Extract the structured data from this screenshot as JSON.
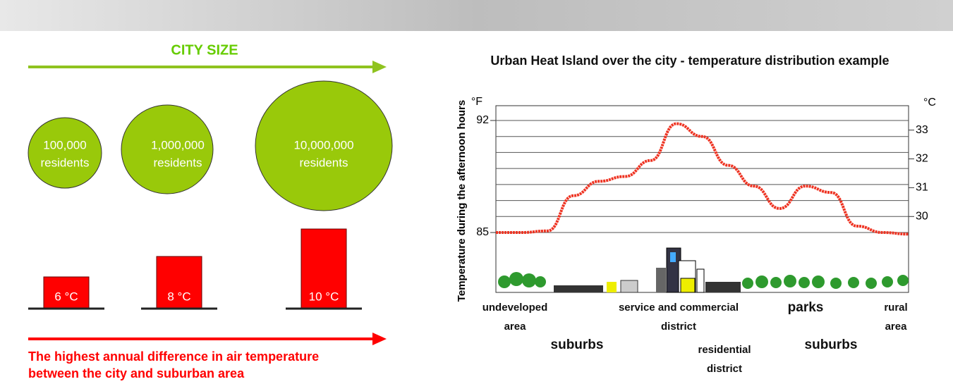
{
  "left": {
    "title": "CITY SIZE",
    "cities": [
      {
        "population": "100,000",
        "unit": "residents",
        "difference": "6 °C"
      },
      {
        "population": "1,000,000",
        "unit": "residents",
        "difference": "8 °C"
      },
      {
        "population": "10,000,000",
        "unit": "residents",
        "difference": "10 °C"
      }
    ],
    "caption": [
      "The highest annual difference in air temperature",
      "between the city and suburban area"
    ]
  },
  "right": {
    "title": "Urban Heat Island over the city - temperature distribution example",
    "y_label": "Temperature during the afternoon hours",
    "left_unit": "°F",
    "right_unit": "°C",
    "left_ticks": [
      92,
      85
    ],
    "right_ticks": [
      33,
      32,
      31,
      30
    ],
    "curve": [
      85.0,
      85.0,
      85.1,
      87.3,
      88.2,
      88.5,
      89.5,
      91.8,
      91.0,
      89.2,
      87.9,
      86.5,
      87.9,
      87.5,
      85.4,
      85.0,
      84.9
    ],
    "zones": [
      [
        "undeveloped",
        "area"
      ],
      [
        "suburbs"
      ],
      [
        "service and commercial",
        "district"
      ],
      [
        "residential",
        "district"
      ],
      [
        "parks"
      ],
      [
        "suburbs"
      ],
      [
        "rural",
        "area"
      ]
    ]
  }
}
